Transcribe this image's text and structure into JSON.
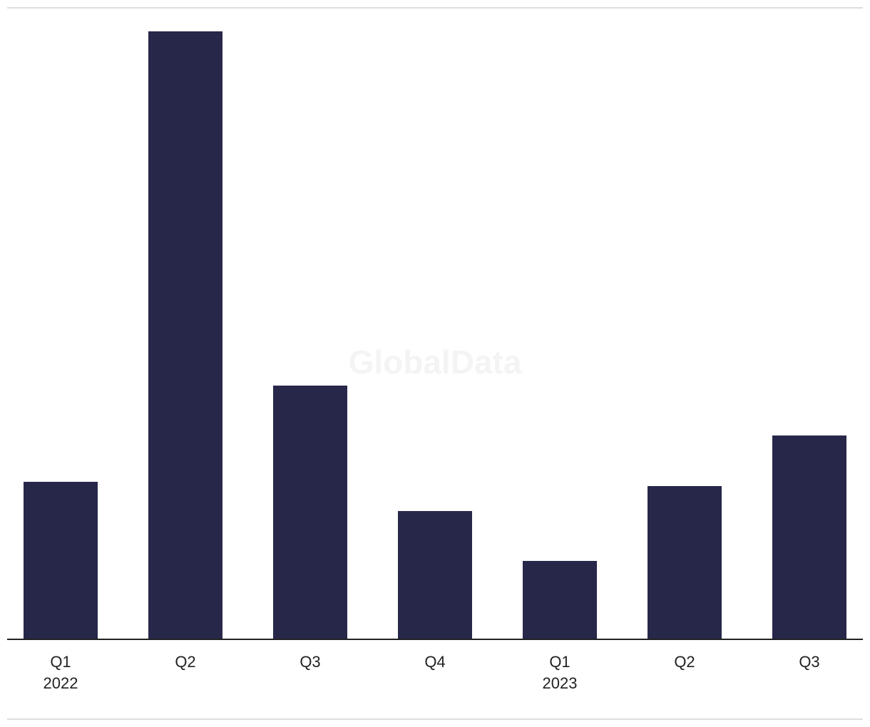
{
  "chart_data": {
    "type": "bar",
    "watermark": "GlobalData",
    "categories": [
      "Q1",
      "Q2",
      "Q3",
      "Q4",
      "Q1",
      "Q2",
      "Q3"
    ],
    "year_labels": [
      "2022",
      null,
      null,
      null,
      "2023",
      null,
      null
    ],
    "values": [
      221,
      853,
      356,
      180,
      110,
      215,
      286
    ],
    "color": "#27274a",
    "ylim": [
      0,
      853
    ]
  }
}
